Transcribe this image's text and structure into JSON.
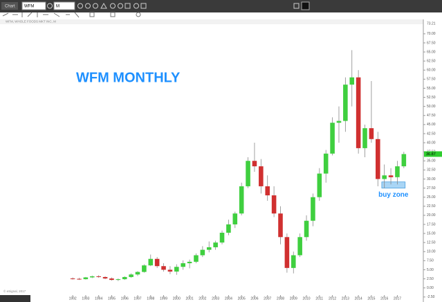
{
  "toolbar": {
    "tab": "Chart",
    "symbol": "WFM",
    "interval": "M"
  },
  "chart_data": {
    "type": "candlestick",
    "subtitle": "WFM, WHOLE FOODS MKT INC, M",
    "title": "WFM MONTHLY",
    "footer": "© eSignal, 2017",
    "up_color": "#3fcf3f",
    "down_color": "#d03030",
    "x": [
      1992.0,
      1992.5,
      1993.0,
      1993.5,
      1994.0,
      1994.5,
      1995.0,
      1995.5,
      1996.0,
      1996.5,
      1997.0,
      1997.5,
      1998.0,
      1998.5,
      1999.0,
      1999.5,
      2000.0,
      2000.5,
      2001.0,
      2001.5,
      2002.0,
      2002.5,
      2003.0,
      2003.5,
      2004.0,
      2004.5,
      2005.0,
      2005.5,
      2006.0,
      2006.5,
      2007.0,
      2007.5,
      2008.0,
      2008.5,
      2009.0,
      2009.5,
      2010.0,
      2010.5,
      2011.0,
      2011.5,
      2012.0,
      2012.5,
      2013.0,
      2013.5,
      2014.0,
      2014.5,
      2015.0,
      2015.5,
      2016.0,
      2016.5,
      2017.0,
      2017.5
    ],
    "open": [
      2.6,
      2.5,
      2.4,
      2.9,
      3.2,
      3.0,
      2.6,
      2.2,
      2.4,
      3.0,
      3.7,
      4.4,
      6.2,
      8.0,
      6.0,
      5.0,
      4.5,
      5.8,
      6.8,
      7.2,
      9.0,
      10.5,
      11.2,
      12.5,
      15.2,
      17.5,
      20.5,
      28.0,
      35.0,
      33.5,
      28.0,
      25.5,
      20.5,
      14.0,
      5.5,
      9.0,
      14.0,
      18.5,
      25.0,
      31.5,
      37.0,
      45.5,
      46.0,
      56.0,
      58.0,
      38.5,
      44.0,
      41.0,
      30.0,
      31.0,
      30.5,
      33.5
    ],
    "high": [
      2.9,
      2.8,
      3.0,
      3.4,
      3.5,
      3.2,
      2.9,
      2.6,
      3.2,
      4.0,
      4.6,
      6.5,
      9.2,
      8.5,
      6.8,
      6.0,
      6.5,
      7.6,
      7.8,
      9.5,
      11.5,
      12.8,
      13.0,
      15.8,
      18.8,
      21.0,
      29.0,
      36.0,
      40.0,
      35.5,
      31.0,
      28.0,
      22.5,
      15.0,
      10.0,
      15.0,
      20.0,
      26.0,
      33.0,
      38.0,
      47.0,
      50.0,
      58.0,
      65.5,
      60.0,
      45.0,
      57.0,
      43.0,
      34.0,
      33.0,
      35.0,
      37.5
    ],
    "low": [
      2.3,
      2.2,
      2.3,
      2.7,
      2.8,
      2.4,
      2.0,
      1.9,
      2.2,
      2.8,
      3.3,
      4.2,
      6.0,
      5.5,
      4.5,
      3.8,
      3.6,
      5.0,
      5.4,
      6.8,
      8.5,
      9.8,
      10.5,
      12.0,
      14.5,
      16.5,
      20.0,
      27.5,
      32.0,
      26.0,
      24.0,
      19.5,
      12.0,
      4.2,
      4.0,
      8.5,
      13.0,
      17.0,
      24.0,
      29.0,
      36.5,
      40.0,
      43.0,
      50.0,
      37.0,
      36.0,
      40.0,
      28.0,
      27.5,
      28.5,
      28.5,
      33.0
    ],
    "close": [
      2.5,
      2.4,
      2.9,
      3.2,
      3.0,
      2.6,
      2.2,
      2.4,
      3.0,
      3.7,
      4.4,
      6.2,
      8.0,
      6.0,
      5.0,
      4.5,
      5.8,
      6.8,
      7.2,
      9.0,
      10.5,
      11.2,
      12.5,
      15.2,
      17.5,
      20.5,
      28.0,
      35.0,
      33.5,
      28.0,
      25.5,
      20.5,
      14.0,
      5.5,
      9.0,
      14.0,
      18.5,
      25.0,
      31.5,
      37.0,
      45.5,
      46.0,
      56.0,
      58.0,
      38.5,
      44.0,
      41.0,
      30.0,
      31.0,
      30.5,
      33.5,
      36.87
    ],
    "last_price": 36.87,
    "buy_zone": {
      "label": "buy zone",
      "x": [
        2015.8,
        2017.6
      ],
      "y": [
        27.5,
        29.2
      ],
      "color": "#a9d5f5"
    },
    "xlim": [
      1986.4,
      2019.0
    ],
    "xticks": [
      1992,
      1993,
      1994,
      1995,
      1996,
      1997,
      1998,
      1999,
      2000,
      2001,
      2002,
      2003,
      2004,
      2005,
      2006,
      2007,
      2008,
      2009,
      2010,
      2011,
      2012,
      2013,
      2014,
      2015,
      2016,
      2017
    ],
    "ylim": [
      -3.5,
      73.21
    ],
    "yticks": [
      {
        "value": -2.5,
        "label": "-2.50"
      },
      {
        "value": 0,
        "label": "0.00"
      },
      {
        "value": 2.5,
        "label": "2.50"
      },
      {
        "value": 5,
        "label": "5.00"
      },
      {
        "value": 7.5,
        "label": "7.50"
      },
      {
        "value": 10,
        "label": "10.00"
      },
      {
        "value": 12.5,
        "label": "12.50"
      },
      {
        "value": 15,
        "label": "15.00"
      },
      {
        "value": 17.5,
        "label": "17.50"
      },
      {
        "value": 20,
        "label": "20.00"
      },
      {
        "value": 22.5,
        "label": "22.50"
      },
      {
        "value": 25,
        "label": "25.00"
      },
      {
        "value": 27.5,
        "label": "27.50"
      },
      {
        "value": 30,
        "label": "30.00"
      },
      {
        "value": 32.5,
        "label": "32.50"
      },
      {
        "value": 35,
        "label": "35.00"
      },
      {
        "value": 37.5,
        "label": "37.50"
      },
      {
        "value": 40,
        "label": "40.00"
      },
      {
        "value": 42.5,
        "label": "42.50"
      },
      {
        "value": 45,
        "label": "45.00"
      },
      {
        "value": 47.5,
        "label": "47.50"
      },
      {
        "value": 50,
        "label": "50.00"
      },
      {
        "value": 52.5,
        "label": "52.50"
      },
      {
        "value": 55,
        "label": "55.00"
      },
      {
        "value": 57.5,
        "label": "57.50"
      },
      {
        "value": 60,
        "label": "60.00"
      },
      {
        "value": 62.5,
        "label": "62.50"
      },
      {
        "value": 65,
        "label": "65.00"
      },
      {
        "value": 67.5,
        "label": "67.50"
      },
      {
        "value": 70,
        "label": "70.00"
      }
    ]
  }
}
